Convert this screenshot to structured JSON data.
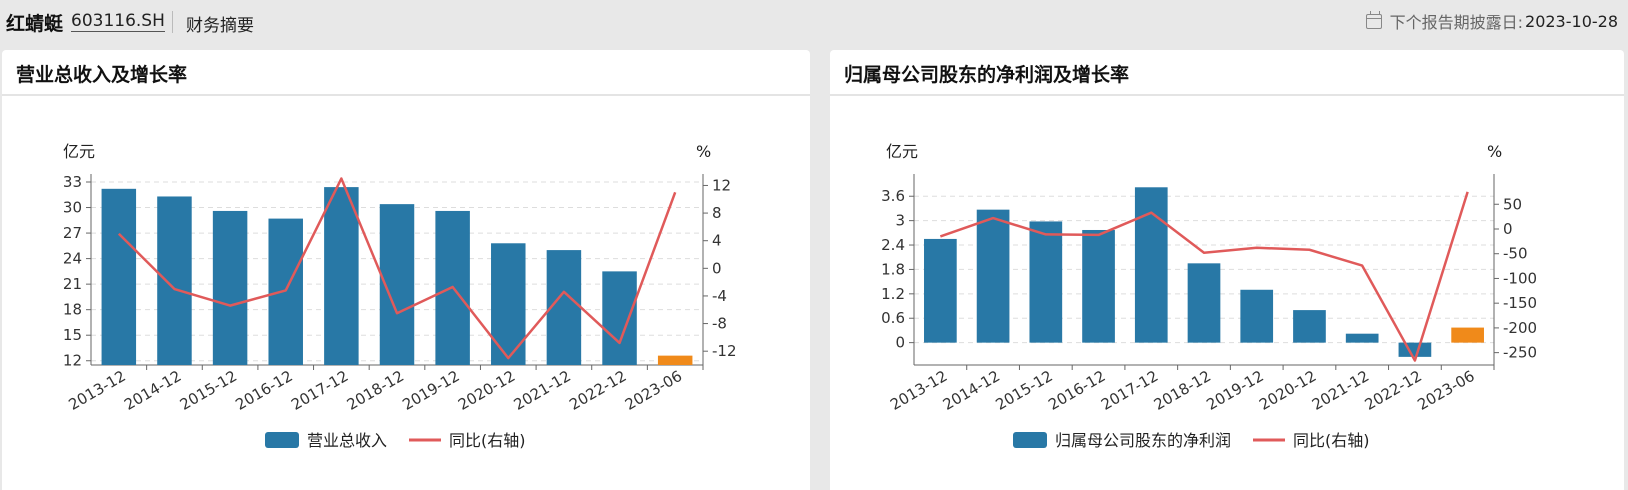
{
  "header": {
    "company_name": "红蜻蜓",
    "stock_code": "603116.SH",
    "section": "财务摘要",
    "disclosure_label": "下个报告期披露日:",
    "disclosure_date": "2023-10-28",
    "calendar_icon": "calendar-icon"
  },
  "colors": {
    "bar": "#2878a6",
    "bar_highlight": "#f08a1a",
    "line": "#e05a5a"
  },
  "chart_data": [
    {
      "type": "bar",
      "title": "营业总收入及增长率",
      "categories": [
        "2013-12",
        "2014-12",
        "2015-12",
        "2016-12",
        "2017-12",
        "2018-12",
        "2019-12",
        "2020-12",
        "2021-12",
        "2022-12",
        "2023-06"
      ],
      "series": [
        {
          "name": "营业总收入",
          "type": "bar",
          "axis": "left",
          "values": [
            32.2,
            31.3,
            29.6,
            28.7,
            32.4,
            30.4,
            29.6,
            25.8,
            25.0,
            22.5,
            12.6
          ]
        },
        {
          "name": "同比(右轴)",
          "type": "line",
          "axis": "right",
          "values": [
            5.0,
            -3.0,
            -5.4,
            -3.2,
            13.0,
            -6.5,
            -2.7,
            -13.0,
            -3.4,
            -10.8,
            11.0
          ]
        }
      ],
      "ylabel_left": "亿元",
      "ylabel_right": "%",
      "y_left_ticks": [
        "33",
        "30",
        "27",
        "24",
        "21",
        "18",
        "15",
        "12"
      ],
      "y_right_ticks": [
        "12",
        "8",
        "4",
        "0",
        "-4",
        "-8",
        "-12"
      ],
      "ylim_left": [
        11.5,
        33
      ],
      "ylim_right": [
        -14,
        12.5
      ],
      "highlight_last_bar": true,
      "grid": true,
      "legend": "bottom"
    },
    {
      "type": "bar",
      "title": "归属母公司股东的净利润及增长率",
      "categories": [
        "2013-12",
        "2014-12",
        "2015-12",
        "2016-12",
        "2017-12",
        "2018-12",
        "2019-12",
        "2020-12",
        "2021-12",
        "2022-12",
        "2023-06"
      ],
      "series": [
        {
          "name": "归属母公司股东的净利润",
          "type": "bar",
          "axis": "left",
          "values": [
            2.55,
            3.27,
            2.98,
            2.77,
            3.82,
            1.95,
            1.3,
            0.8,
            0.22,
            -0.35,
            0.37
          ]
        },
        {
          "name": "同比(右轴)",
          "type": "line",
          "axis": "right",
          "values": [
            -15,
            22,
            -11,
            -12,
            33,
            -48,
            -38,
            -42,
            -74,
            -266,
            75
          ]
        }
      ],
      "ylabel_left": "亿元",
      "ylabel_right": "%",
      "y_left_ticks": [
        "3.6",
        "3",
        "2.4",
        "1.8",
        "1.2",
        "0.6",
        "0"
      ],
      "y_right_ticks": [
        "50",
        "0",
        "-50",
        "-100",
        "-150",
        "-200",
        "-250"
      ],
      "ylim_left": [
        -0.55,
        3.95
      ],
      "ylim_right": [
        -275,
        95
      ],
      "highlight_last_bar": true,
      "grid": true,
      "legend": "bottom"
    }
  ]
}
